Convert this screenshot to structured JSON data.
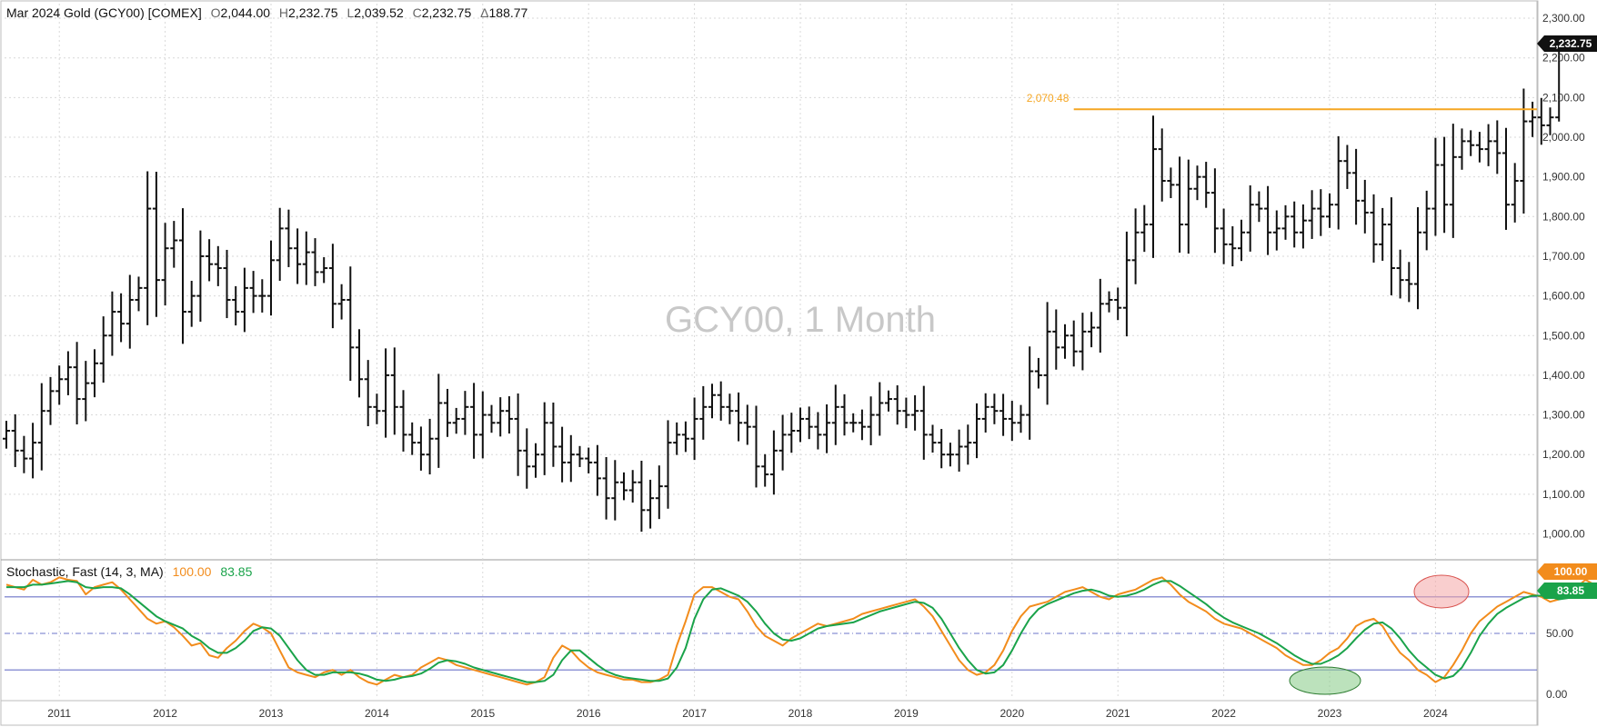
{
  "header": {
    "symbol_label": "Mar 2024 Gold (GCY00) [COMEX]",
    "open_key": "O",
    "open_value": "2,044.00",
    "high_key": "H",
    "high_value": "2,232.75",
    "low_key": "L",
    "low_value": "2,039.52",
    "close_key": "C",
    "close_value": "2,232.75",
    "change_key": "Δ",
    "change_value": "188.77"
  },
  "watermark": "GCY00, 1 Month",
  "colors": {
    "bar": "#111111",
    "resistance": "#f5a623",
    "stoch_k": "#f28c1c",
    "stoch_d": "#1aa34a",
    "band_line": "#6b74c9",
    "grid": "#d9d9d9",
    "last_price_bg": "#111111",
    "ellipse_red": "#f4a6a6",
    "ellipse_green": "#8fcf8f"
  },
  "price_tag": "2,232.75",
  "stoch_header": {
    "label": "Stochastic, Fast  (14, 3, MA)",
    "k_value": "100.00",
    "d_value": "83.85"
  },
  "stoch_tags": {
    "k": "100.00",
    "d": "83.85"
  },
  "chart_data": [
    {
      "type": "ohlc",
      "interval": "1 Month",
      "start_date": "2010-07",
      "resistance": {
        "value": 2070.48,
        "label": "2,070.48",
        "start_date": "2020-08"
      },
      "ylim": [
        950,
        2320
      ],
      "y_ticks": [
        1000,
        1100,
        1200,
        1300,
        1400,
        1500,
        1600,
        1700,
        1800,
        1900,
        2000,
        2100,
        2200,
        2300
      ],
      "y_tick_labels": [
        "1,000.00",
        "1,100.00",
        "1,200.00",
        "1,300.00",
        "1,400.00",
        "1,500.00",
        "1,600.00",
        "1,700.00",
        "1,800.00",
        "1,900.00",
        "2,000.00",
        "2,100.00",
        "2,200.00",
        "2,300.00"
      ],
      "x_ticks": [
        "2011",
        "2012",
        "2013",
        "2014",
        "2015",
        "2016",
        "2017",
        "2018",
        "2019",
        "2020",
        "2021",
        "2022",
        "2023",
        "2024"
      ],
      "closes": [
        1260,
        1210,
        1190,
        1230,
        1310,
        1360,
        1390,
        1420,
        1340,
        1380,
        1430,
        1500,
        1560,
        1530,
        1590,
        1620,
        1820,
        1640,
        1720,
        1740,
        1560,
        1600,
        1700,
        1680,
        1670,
        1590,
        1560,
        1620,
        1600,
        1600,
        1690,
        1770,
        1720,
        1680,
        1710,
        1660,
        1670,
        1580,
        1590,
        1470,
        1390,
        1320,
        1310,
        1400,
        1320,
        1250,
        1230,
        1200,
        1240,
        1330,
        1280,
        1290,
        1320,
        1250,
        1300,
        1280,
        1310,
        1290,
        1210,
        1170,
        1200,
        1280,
        1220,
        1180,
        1200,
        1190,
        1180,
        1140,
        1090,
        1130,
        1110,
        1130,
        1060,
        1090,
        1120,
        1230,
        1250,
        1240,
        1290,
        1320,
        1350,
        1320,
        1310,
        1280,
        1270,
        1170,
        1150,
        1210,
        1250,
        1260,
        1290,
        1270,
        1250,
        1280,
        1320,
        1280,
        1280,
        1270,
        1300,
        1330,
        1340,
        1310,
        1300,
        1310,
        1250,
        1230,
        1200,
        1200,
        1220,
        1230,
        1290,
        1320,
        1310,
        1290,
        1280,
        1300,
        1410,
        1400,
        1510,
        1470,
        1500,
        1460,
        1510,
        1520,
        1580,
        1590,
        1570,
        1690,
        1760,
        1780,
        1970,
        1890,
        1880,
        1780,
        1870,
        1900,
        1860,
        1770,
        1730,
        1720,
        1760,
        1830,
        1820,
        1760,
        1770,
        1800,
        1760,
        1790,
        1820,
        1800,
        1830,
        1940,
        1910,
        1840,
        1810,
        1730,
        1780,
        1670,
        1640,
        1630,
        1760,
        1820,
        1930,
        1830,
        1950,
        1990,
        1980,
        1970,
        1990,
        1960,
        1830,
        1890,
        2040,
        2050,
        2030,
        2050,
        2232.75
      ]
    },
    {
      "type": "line",
      "title": "Stochastic, Fast (14, 3, MA)",
      "ylim": [
        0,
        100
      ],
      "bands": [
        20,
        50,
        80
      ],
      "y_tick_labels": [
        "0.00",
        "50.00"
      ],
      "series": [
        {
          "name": "%K",
          "last": 100.0,
          "values": [
            90,
            88,
            86,
            94,
            90,
            92,
            96,
            94,
            93,
            82,
            88,
            90,
            92,
            86,
            78,
            70,
            62,
            58,
            60,
            55,
            48,
            40,
            42,
            32,
            30,
            38,
            44,
            52,
            58,
            55,
            50,
            36,
            22,
            18,
            16,
            14,
            18,
            20,
            16,
            20,
            14,
            10,
            8,
            12,
            16,
            14,
            16,
            22,
            26,
            30,
            28,
            24,
            22,
            20,
            18,
            16,
            14,
            12,
            10,
            8,
            10,
            14,
            30,
            40,
            36,
            28,
            22,
            18,
            16,
            14,
            12,
            12,
            10,
            10,
            12,
            16,
            40,
            60,
            82,
            88,
            88,
            84,
            80,
            78,
            68,
            56,
            48,
            44,
            40,
            46,
            50,
            54,
            58,
            56,
            58,
            60,
            62,
            66,
            68,
            70,
            72,
            74,
            76,
            78,
            72,
            64,
            52,
            40,
            28,
            20,
            16,
            18,
            24,
            36,
            52,
            64,
            72,
            74,
            76,
            80,
            84,
            86,
            88,
            84,
            80,
            78,
            82,
            84,
            86,
            90,
            94,
            96,
            90,
            82,
            76,
            72,
            68,
            62,
            58,
            56,
            54,
            50,
            46,
            42,
            38,
            32,
            28,
            24,
            24,
            28,
            34,
            38,
            46,
            56,
            60,
            62,
            56,
            44,
            34,
            28,
            20,
            16,
            10,
            14,
            24,
            36,
            50,
            60,
            66,
            72,
            76,
            80,
            84,
            82,
            80,
            76,
            78,
            82,
            88,
            94,
            90,
            84,
            82,
            84,
            100
          ]
        },
        {
          "name": "%D",
          "last": 83.85,
          "values": [
            88,
            88,
            88,
            90,
            90,
            91,
            92,
            93,
            92,
            88,
            87,
            88,
            88,
            87,
            82,
            76,
            70,
            64,
            60,
            57,
            54,
            48,
            44,
            38,
            34,
            34,
            38,
            44,
            52,
            55,
            54,
            48,
            38,
            28,
            20,
            16,
            16,
            18,
            18,
            18,
            17,
            15,
            12,
            11,
            12,
            14,
            15,
            17,
            21,
            26,
            28,
            27,
            25,
            22,
            20,
            18,
            16,
            14,
            12,
            10,
            10,
            11,
            16,
            28,
            36,
            36,
            30,
            24,
            19,
            16,
            14,
            13,
            12,
            11,
            11,
            13,
            22,
            38,
            62,
            78,
            86,
            87,
            84,
            81,
            76,
            68,
            58,
            50,
            45,
            44,
            46,
            50,
            54,
            56,
            57,
            58,
            59,
            62,
            65,
            68,
            70,
            72,
            74,
            76,
            75,
            71,
            62,
            50,
            38,
            28,
            20,
            17,
            18,
            24,
            36,
            50,
            62,
            70,
            74,
            77,
            80,
            83,
            85,
            86,
            84,
            81,
            80,
            81,
            83,
            86,
            90,
            93,
            93,
            89,
            84,
            79,
            74,
            68,
            63,
            59,
            56,
            53,
            50,
            46,
            42,
            37,
            32,
            28,
            25,
            25,
            28,
            32,
            38,
            46,
            53,
            58,
            59,
            54,
            46,
            36,
            28,
            22,
            16,
            13,
            15,
            22,
            34,
            48,
            58,
            66,
            71,
            75,
            79,
            81,
            81,
            80,
            78,
            79,
            82,
            86,
            89,
            88,
            85,
            83,
            83.85
          ]
        }
      ]
    }
  ]
}
